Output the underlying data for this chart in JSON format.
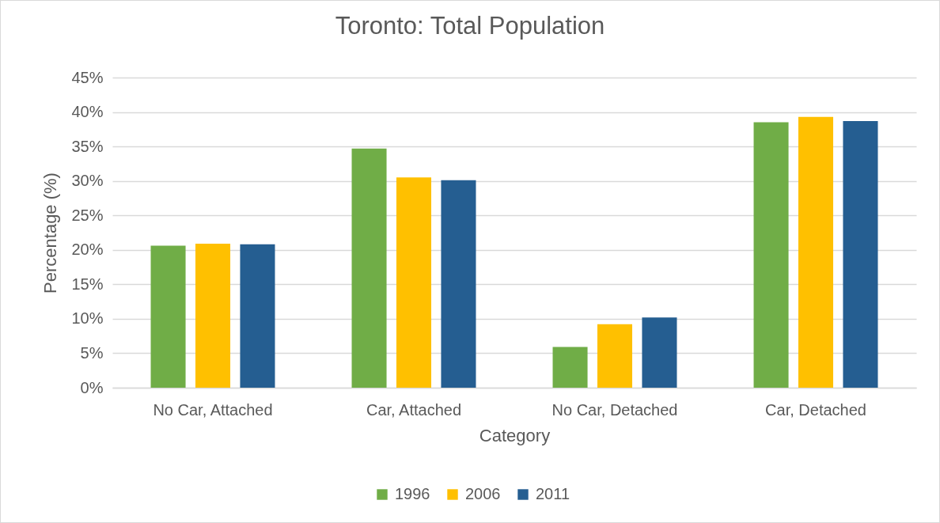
{
  "chart_data": {
    "type": "bar",
    "title": "Toronto: Total Population",
    "xlabel": "Category",
    "ylabel": "Percentage (%)",
    "categories": [
      "No Car, Attached",
      "Car, Attached",
      "No Car, Detached",
      "Car, Detached"
    ],
    "series": [
      {
        "name": "1996",
        "color": "#70ad47",
        "values": [
          20.6,
          34.7,
          5.9,
          38.5
        ]
      },
      {
        "name": "2006",
        "color": "#ffc000",
        "values": [
          20.9,
          30.5,
          9.2,
          39.3
        ]
      },
      {
        "name": "2011",
        "color": "#255e91",
        "values": [
          20.8,
          30.1,
          10.2,
          38.7
        ]
      }
    ],
    "ylim": [
      0,
      45
    ],
    "yticks": [
      {
        "value": 0,
        "label": "0%"
      },
      {
        "value": 5,
        "label": "5%"
      },
      {
        "value": 10,
        "label": "10%"
      },
      {
        "value": 15,
        "label": "15%"
      },
      {
        "value": 20,
        "label": "20%"
      },
      {
        "value": 25,
        "label": "25%"
      },
      {
        "value": 30,
        "label": "30%"
      },
      {
        "value": 35,
        "label": "35%"
      },
      {
        "value": 40,
        "label": "40%"
      },
      {
        "value": 45,
        "label": "45%"
      }
    ],
    "grid": "y",
    "legend": "bottom"
  }
}
